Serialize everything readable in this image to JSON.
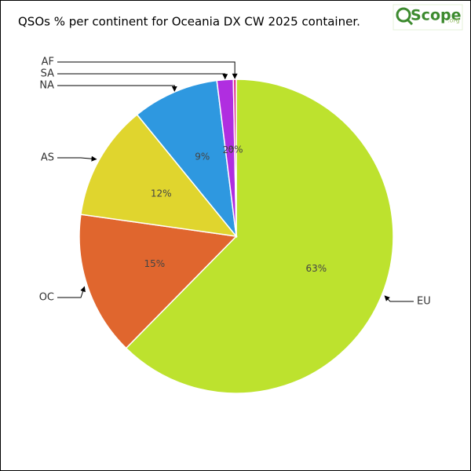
{
  "chart_data": {
    "type": "pie",
    "title": "QSOs % per continent for Oceania DX CW 2025 container.",
    "logo": {
      "text": "Scope",
      "suffix": ".org"
    },
    "categories": [
      "EU",
      "OC",
      "AS",
      "NA",
      "SA",
      "AF"
    ],
    "values": [
      63,
      15,
      12,
      9,
      1.7,
      0.3
    ],
    "value_labels": [
      "63%",
      "15%",
      "12%",
      "9%",
      "2%",
      "0%"
    ],
    "colors": [
      "#bde22e",
      "#e0662e",
      "#e0d52e",
      "#2e98e0",
      "#b02ee0",
      "#e02e8a"
    ],
    "start_angle": "top",
    "direction": "clockwise"
  }
}
